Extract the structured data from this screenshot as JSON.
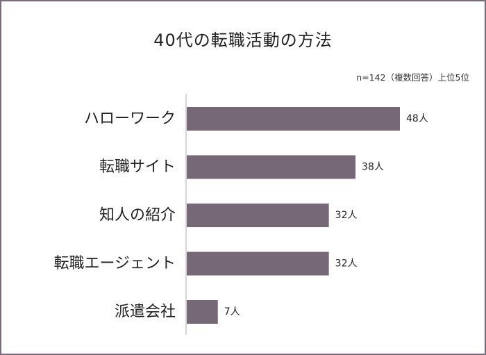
{
  "title": "40代の転職活動の方法",
  "note": "n=142（複数回答）上位5位",
  "colors": {
    "bar": "#776878",
    "axis": "#c8c8c8",
    "border": "#7a6a7a"
  },
  "chart_data": {
    "type": "bar",
    "orientation": "horizontal",
    "categories": [
      "ハローワーク",
      "転職サイト",
      "知人の紹介",
      "転職エージェント",
      "派遣会社"
    ],
    "values": [
      48,
      38,
      32,
      32,
      7
    ],
    "value_labels": [
      "48人",
      "38人",
      "32人",
      "32人",
      "7人"
    ],
    "title": "40代の転職活動の方法",
    "xlabel": "",
    "ylabel": "",
    "xlim": [
      0,
      48
    ],
    "grid": false,
    "legend": "none"
  }
}
